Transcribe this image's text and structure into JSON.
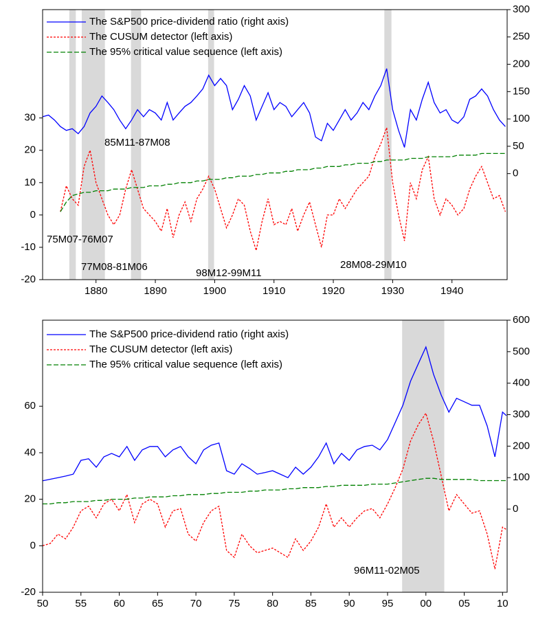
{
  "chart_data": [
    {
      "type": "line",
      "x": [
        1871,
        1872,
        1873,
        1874,
        1875,
        1876,
        1877,
        1878,
        1879,
        1880,
        1881,
        1882,
        1883,
        1884,
        1885,
        1886,
        1887,
        1888,
        1889,
        1890,
        1891,
        1892,
        1893,
        1894,
        1895,
        1896,
        1897,
        1898,
        1899,
        1900,
        1901,
        1902,
        1903,
        1904,
        1905,
        1906,
        1907,
        1908,
        1909,
        1910,
        1911,
        1912,
        1913,
        1914,
        1915,
        1916,
        1917,
        1918,
        1919,
        1920,
        1921,
        1922,
        1923,
        1924,
        1925,
        1926,
        1927,
        1928,
        1929,
        1930,
        1931,
        1932,
        1933,
        1934,
        1935,
        1936,
        1937,
        1938,
        1939,
        1940,
        1941,
        1942,
        1943,
        1944,
        1945,
        1946,
        1947,
        1948,
        1949
      ],
      "series": [
        {
          "name": "The S&P500 price-dividend ratio (right axis)",
          "color": "#0000ff",
          "linestyle": "solid",
          "axis": "y2",
          "values": [
            104,
            107,
            98,
            86,
            79,
            82,
            73,
            86,
            111,
            123,
            142,
            130,
            117,
            98,
            82,
            98,
            117,
            104,
            117,
            111,
            98,
            130,
            98,
            111,
            123,
            130,
            142,
            155,
            180,
            161,
            174,
            161,
            117,
            136,
            161,
            142,
            98,
            123,
            148,
            117,
            130,
            123,
            104,
            117,
            130,
            111,
            67,
            60,
            92,
            79,
            98,
            117,
            98,
            111,
            130,
            117,
            142,
            161,
            192,
            117,
            79,
            48,
            117,
            98,
            136,
            167,
            130,
            111,
            117,
            98,
            92,
            104,
            136,
            142,
            155,
            142,
            117,
            98,
            86
          ]
        },
        {
          "name": "The CUSUM detector (left axis)",
          "color": "#ff0000",
          "linestyle": "dashed",
          "values": [
            null,
            null,
            null,
            1,
            9,
            5,
            3,
            15,
            20,
            10,
            5,
            0,
            -3,
            0,
            8,
            14,
            8,
            2,
            0,
            -2,
            -5,
            2,
            -7,
            0,
            4,
            -2,
            5,
            8,
            12,
            8,
            2,
            -4,
            0,
            5,
            3,
            -5,
            -11,
            -2,
            5,
            -3,
            -2,
            -3,
            2,
            -5,
            0,
            4,
            -3,
            -10,
            0,
            0,
            5,
            2,
            5,
            8,
            10,
            12,
            18,
            22,
            27,
            10,
            0,
            -8,
            10,
            5,
            14,
            18,
            5,
            0,
            5,
            3,
            0,
            2,
            8,
            12,
            15,
            10,
            5,
            6,
            1
          ]
        },
        {
          "name": "The 95% critical value sequence (left axis)",
          "color": "#008000",
          "linestyle": "longdash",
          "values": [
            null,
            null,
            null,
            1,
            4,
            6,
            6.5,
            7,
            7,
            7.5,
            7.5,
            7.5,
            8,
            8,
            8,
            8.5,
            8.5,
            8.5,
            9,
            9,
            9,
            9.5,
            9.5,
            10,
            10,
            10,
            10.5,
            10.5,
            11,
            11,
            11,
            11.5,
            11.5,
            12,
            12,
            12,
            12.5,
            12.5,
            13,
            13,
            13,
            13.5,
            13.5,
            14,
            14,
            14,
            14.5,
            14.5,
            15,
            15,
            15,
            15.5,
            15.5,
            16,
            16,
            16,
            16.5,
            16.5,
            17,
            17,
            17,
            17,
            17.5,
            17.5,
            17.5,
            18,
            18,
            18,
            18,
            18,
            18.5,
            18.5,
            18.5,
            18.5,
            19,
            19,
            19,
            19,
            19
          ]
        }
      ],
      "shaded_regions": [
        {
          "label": "75M07-76M07",
          "start": 1875.5,
          "end": 1876.6
        },
        {
          "label": "77M08-81M06",
          "start": 1877.6,
          "end": 1881.5
        },
        {
          "label": "85M11-87M08",
          "start": 1885.9,
          "end": 1887.6
        },
        {
          "label": "98M12-99M11",
          "start": 1898.9,
          "end": 1899.9
        },
        {
          "label": "28M08-29M10",
          "start": 1928.6,
          "end": 1929.8
        }
      ],
      "xlim": [
        1871,
        1949.3
      ],
      "xticks": [
        1880,
        1890,
        1900,
        1910,
        1920,
        1930,
        1940
      ],
      "ylim": [
        -20,
        63.5
      ],
      "yticks": [
        -20,
        -10,
        0,
        10,
        20,
        30
      ],
      "y2lim": [
        -194,
        300
      ],
      "y2ticks": [
        0,
        50,
        100,
        150,
        200,
        250,
        300
      ]
    },
    {
      "type": "line",
      "x": [
        1950,
        1951,
        1952,
        1953,
        1954,
        1955,
        1956,
        1957,
        1958,
        1959,
        1960,
        1961,
        1962,
        1963,
        1964,
        1965,
        1966,
        1967,
        1968,
        1969,
        1970,
        1971,
        1972,
        1973,
        1974,
        1975,
        1976,
        1977,
        1978,
        1979,
        1980,
        1981,
        1982,
        1983,
        1984,
        1985,
        1986,
        1987,
        1988,
        1989,
        1990,
        1991,
        1992,
        1993,
        1994,
        1995,
        1996,
        1997,
        1998,
        1999,
        2000,
        2001,
        2002,
        2003,
        2004,
        2005,
        2006,
        2007,
        2008,
        2009,
        2010,
        2010.5
      ],
      "series": [
        {
          "name": "The S&P500 price-dividend ratio (right axis)",
          "color": "#0000ff",
          "linestyle": "solid",
          "axis": "y2",
          "values": [
            90,
            95,
            100,
            105,
            111,
            155,
            160,
            133,
            166,
            177,
            166,
            199,
            155,
            188,
            199,
            199,
            166,
            188,
            199,
            166,
            144,
            188,
            203,
            210,
            122,
            111,
            144,
            129,
            111,
            116,
            122,
            111,
            100,
            133,
            111,
            133,
            166,
            210,
            144,
            177,
            155,
            188,
            199,
            203,
            188,
            221,
            275,
            330,
            406,
            461,
            515,
            428,
            362,
            308,
            352,
            341,
            330,
            330,
            264,
            166,
            308,
            297
          ]
        },
        {
          "name": "The CUSUM detector (left axis)",
          "color": "#ff0000",
          "linestyle": "dashed",
          "values": [
            0,
            1,
            5,
            3,
            8,
            15,
            17,
            12,
            18,
            20,
            15,
            22,
            10,
            18,
            20,
            18,
            8,
            15,
            16,
            5,
            2,
            10,
            15,
            17,
            -2,
            -5,
            5,
            0,
            -3,
            -2,
            -1,
            -3,
            -5,
            3,
            -2,
            2,
            8,
            18,
            8,
            12,
            8,
            12,
            15,
            16,
            12,
            18,
            25,
            33,
            45,
            52,
            57,
            45,
            30,
            15,
            22,
            18,
            14,
            15,
            5,
            -10,
            8,
            7
          ]
        },
        {
          "name": "The 95% critical value sequence (left axis)",
          "color": "#008000",
          "linestyle": "longdash",
          "values": [
            18,
            18,
            18.5,
            18.5,
            19,
            19,
            19,
            19.5,
            19.5,
            20,
            20,
            20,
            20.5,
            20.5,
            21,
            21,
            21,
            21.5,
            21.5,
            22,
            22,
            22,
            22.5,
            22.5,
            23,
            23,
            23,
            23.5,
            23.5,
            24,
            24,
            24,
            24.5,
            24.5,
            25,
            25,
            25,
            25.5,
            25.5,
            26,
            26,
            26,
            26,
            26.5,
            26.5,
            26.5,
            27,
            27.5,
            28,
            28.5,
            29,
            29,
            28.5,
            28.5,
            28.5,
            28.5,
            28.5,
            28,
            28,
            28,
            28,
            28
          ]
        }
      ],
      "shaded_regions": [
        {
          "label": "96M11-02M05",
          "start": 1996.9,
          "end": 2002.4
        }
      ],
      "xlim": [
        1950,
        2010.6
      ],
      "xticks": [
        {
          "value": 1950,
          "label": "50"
        },
        {
          "value": 1955,
          "label": "55"
        },
        {
          "value": 1960,
          "label": "60"
        },
        {
          "value": 1965,
          "label": "65"
        },
        {
          "value": 1970,
          "label": "70"
        },
        {
          "value": 1975,
          "label": "75"
        },
        {
          "value": 1980,
          "label": "80"
        },
        {
          "value": 1985,
          "label": "85"
        },
        {
          "value": 1990,
          "label": "90"
        },
        {
          "value": 1995,
          "label": "95"
        },
        {
          "value": 2000,
          "label": "00"
        },
        {
          "value": 2005,
          "label": "05"
        },
        {
          "value": 2010,
          "label": "10"
        }
      ],
      "ylim": [
        -20,
        97
      ],
      "yticks": [
        -20,
        0,
        20,
        40,
        60
      ],
      "y2lim": [
        -264,
        600
      ],
      "y2ticks": [
        0,
        100,
        200,
        300,
        400,
        500,
        600
      ]
    }
  ]
}
